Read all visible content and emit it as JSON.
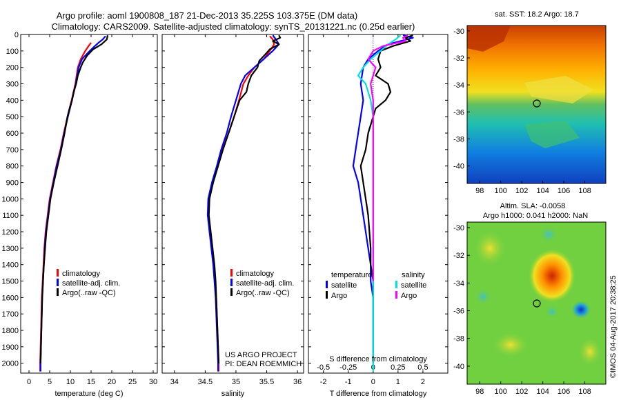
{
  "header": {
    "line1": "Argo profile: aoml 1900808_187 21-Dec-2013 35.225S 103.375E (DM data)",
    "line2": "Climatology: CARS2009. Satellite-adjusted climatology: synTS_20131221.nc (0.25d earlier)"
  },
  "credits": {
    "project": "US ARGO PROJECT",
    "pi": "PI: DEAN ROEMMICH",
    "stamp": "©IMOS 04-Aug-2017 20:38:25"
  },
  "chart_data": [
    {
      "type": "line",
      "xlabel": "temperature (deg C)",
      "xlim": [
        -2,
        31
      ],
      "xticks": [
        "0",
        "5",
        "10",
        "15",
        "20",
        "25",
        "30"
      ],
      "ylim": [
        2060,
        0
      ],
      "yticks": [
        "0",
        "100",
        "200",
        "300",
        "400",
        "500",
        "600",
        "700",
        "800",
        "900",
        "1000",
        "1100",
        "1200",
        "1300",
        "1400",
        "1500",
        "1600",
        "1700",
        "1800",
        "1900",
        "2000"
      ],
      "legend": [
        "climatology",
        "satellite-adj. clim.",
        "Argo(..raw -QC)"
      ],
      "series": [
        {
          "name": "climatology",
          "color": "#ff0000",
          "points": [
            [
              15,
              50
            ],
            [
              14.4,
              70
            ],
            [
              13.6,
              100
            ],
            [
              12.5,
              150
            ],
            [
              11.8,
              200
            ],
            [
              11.2,
              300
            ],
            [
              10.3,
              400
            ],
            [
              9.3,
              500
            ],
            [
              8.4,
              600
            ],
            [
              7.6,
              700
            ],
            [
              6.6,
              800
            ],
            [
              5.8,
              900
            ],
            [
              5.0,
              1000
            ],
            [
              4.5,
              1100
            ],
            [
              4.0,
              1200
            ],
            [
              3.7,
              1300
            ],
            [
              3.5,
              1400
            ],
            [
              3.3,
              1500
            ],
            [
              3.1,
              1600
            ],
            [
              3.0,
              1700
            ],
            [
              2.9,
              1800
            ],
            [
              2.8,
              1900
            ],
            [
              2.7,
              2000
            ],
            [
              2.7,
              2050
            ]
          ]
        },
        {
          "name": "satellite-adj. clim.",
          "color": "#0000ff",
          "points": [
            [
              18.5,
              10
            ],
            [
              17.8,
              30
            ],
            [
              16.8,
              50
            ],
            [
              15.5,
              80
            ],
            [
              14.3,
              110
            ],
            [
              12.8,
              150
            ],
            [
              12,
              200
            ],
            [
              11.3,
              300
            ],
            [
              10.4,
              400
            ],
            [
              9.4,
              500
            ],
            [
              8.5,
              600
            ],
            [
              7.7,
              700
            ],
            [
              6.7,
              800
            ],
            [
              5.9,
              900
            ],
            [
              5.1,
              1000
            ],
            [
              4.6,
              1100
            ],
            [
              4.1,
              1200
            ],
            [
              3.8,
              1300
            ],
            [
              3.6,
              1400
            ],
            [
              3.4,
              1500
            ],
            [
              3.2,
              1600
            ],
            [
              3.1,
              1700
            ],
            [
              3.0,
              1800
            ],
            [
              2.9,
              1900
            ],
            [
              2.8,
              2000
            ],
            [
              2.8,
              2050
            ]
          ]
        },
        {
          "name": "Argo(..raw -QC)",
          "color": "#000000",
          "points": [
            [
              19,
              5
            ],
            [
              18.8,
              30
            ],
            [
              17.5,
              60
            ],
            [
              15.5,
              90
            ],
            [
              14,
              130
            ],
            [
              13,
              170
            ],
            [
              12.5,
              200
            ],
            [
              11.8,
              250
            ],
            [
              11.4,
              300
            ],
            [
              10.8,
              350
            ],
            [
              10.4,
              400
            ],
            [
              9.8,
              450
            ],
            [
              9.3,
              500
            ],
            [
              8.6,
              600
            ],
            [
              7.8,
              700
            ],
            [
              6.9,
              800
            ],
            [
              6.0,
              900
            ],
            [
              5.2,
              1000
            ],
            [
              4.7,
              1100
            ],
            [
              4.2,
              1200
            ],
            [
              3.9,
              1300
            ],
            [
              3.6,
              1400
            ],
            [
              3.4,
              1500
            ],
            [
              3.2,
              1600
            ],
            [
              3.1,
              1700
            ],
            [
              3.0,
              1800
            ],
            [
              2.9,
              1900
            ],
            [
              2.8,
              2000
            ]
          ]
        }
      ]
    },
    {
      "type": "line",
      "xlabel": "salinity",
      "xlim": [
        33.8,
        36.1
      ],
      "xticks": [
        "34",
        "34.5",
        "35",
        "35.5",
        "36"
      ],
      "ylim": [
        2060,
        0
      ],
      "legend": [
        "climatology",
        "satellite-adj. clim.",
        "Argo(..raw -QC)"
      ],
      "series": [
        {
          "name": "climatology",
          "color": "#ff0000",
          "points": [
            [
              35.55,
              10
            ],
            [
              35.6,
              30
            ],
            [
              35.62,
              60
            ],
            [
              35.55,
              100
            ],
            [
              35.45,
              150
            ],
            [
              35.3,
              200
            ],
            [
              35.2,
              250
            ],
            [
              35.12,
              300
            ],
            [
              35.05,
              400
            ],
            [
              34.97,
              500
            ],
            [
              34.88,
              600
            ],
            [
              34.78,
              700
            ],
            [
              34.7,
              800
            ],
            [
              34.62,
              900
            ],
            [
              34.56,
              1000
            ],
            [
              34.55,
              1100
            ],
            [
              34.58,
              1200
            ],
            [
              34.61,
              1300
            ],
            [
              34.64,
              1400
            ],
            [
              34.66,
              1500
            ],
            [
              34.68,
              1600
            ],
            [
              34.69,
              1700
            ],
            [
              34.7,
              1800
            ],
            [
              34.71,
              1900
            ],
            [
              34.72,
              2000
            ],
            [
              34.72,
              2050
            ]
          ]
        },
        {
          "name": "satellite-adj. clim.",
          "color": "#0000ff",
          "points": [
            [
              35.6,
              5
            ],
            [
              35.65,
              30
            ],
            [
              35.7,
              60
            ],
            [
              35.6,
              100
            ],
            [
              35.45,
              150
            ],
            [
              35.3,
              200
            ],
            [
              35.15,
              250
            ],
            [
              35.08,
              300
            ],
            [
              35.0,
              400
            ],
            [
              34.92,
              500
            ],
            [
              34.85,
              600
            ],
            [
              34.76,
              700
            ],
            [
              34.69,
              800
            ],
            [
              34.61,
              900
            ],
            [
              34.55,
              1000
            ],
            [
              34.54,
              1100
            ],
            [
              34.57,
              1200
            ],
            [
              34.6,
              1300
            ],
            [
              34.63,
              1400
            ],
            [
              34.65,
              1500
            ],
            [
              34.67,
              1600
            ],
            [
              34.68,
              1700
            ],
            [
              34.69,
              1800
            ],
            [
              34.7,
              1900
            ],
            [
              34.71,
              2000
            ],
            [
              34.71,
              2050
            ]
          ]
        },
        {
          "name": "Argo(..raw -QC)",
          "color": "#000000",
          "points": [
            [
              35.7,
              5
            ],
            [
              35.72,
              20
            ],
            [
              35.6,
              40
            ],
            [
              35.7,
              60
            ],
            [
              35.55,
              90
            ],
            [
              35.48,
              120
            ],
            [
              35.38,
              160
            ],
            [
              35.35,
              200
            ],
            [
              35.25,
              250
            ],
            [
              35.2,
              300
            ],
            [
              35.17,
              350
            ],
            [
              35.06,
              400
            ],
            [
              34.97,
              500
            ],
            [
              34.88,
              600
            ],
            [
              34.79,
              700
            ],
            [
              34.71,
              800
            ],
            [
              34.63,
              900
            ],
            [
              34.57,
              1000
            ],
            [
              34.56,
              1100
            ],
            [
              34.59,
              1200
            ],
            [
              34.62,
              1300
            ],
            [
              34.65,
              1400
            ],
            [
              34.67,
              1500
            ],
            [
              34.68,
              1600
            ],
            [
              34.69,
              1700
            ],
            [
              34.7,
              1800
            ],
            [
              34.71,
              1900
            ],
            [
              34.72,
              2000
            ]
          ]
        }
      ]
    },
    {
      "type": "line",
      "xlabel": "T difference from climatology",
      "xlabel2": "S difference from climatology",
      "xlim": [
        -2.6,
        3.0
      ],
      "xticks": [
        "-2",
        "-1",
        "0",
        "1",
        "2"
      ],
      "xticks_top": [
        "-0.5",
        "-0.25",
        "0",
        "0.25",
        "0.5"
      ],
      "ylim": [
        2060,
        0
      ],
      "legend_group_t": "temperature",
      "legend_group_s": "salinity",
      "legend": [
        "satellite",
        "Argo",
        "satellite",
        "Argo"
      ],
      "series": [
        {
          "name": "satellite",
          "group": "temperature",
          "color": "#0000ff",
          "points": [
            [
              1.2,
              5
            ],
            [
              1.6,
              20
            ],
            [
              0.6,
              60
            ],
            [
              0.2,
              100
            ],
            [
              -0.2,
              150
            ],
            [
              -0.4,
              200
            ],
            [
              -0.5,
              300
            ],
            [
              -0.4,
              400
            ],
            [
              -0.5,
              500
            ],
            [
              -0.6,
              600
            ],
            [
              -0.7,
              700
            ],
            [
              -0.8,
              800
            ],
            [
              -0.6,
              900
            ],
            [
              -0.5,
              1000
            ],
            [
              -0.4,
              1100
            ],
            [
              -0.3,
              1200
            ],
            [
              -0.2,
              1300
            ],
            [
              -0.1,
              1400
            ],
            [
              -0.1,
              1500
            ],
            [
              0,
              1600
            ],
            [
              0,
              1700
            ],
            [
              0,
              1800
            ],
            [
              0,
              1900
            ],
            [
              0,
              2000
            ]
          ]
        },
        {
          "name": "Argo",
          "group": "temperature",
          "color": "#000000",
          "points": [
            [
              1.6,
              5
            ],
            [
              1.3,
              20
            ],
            [
              1.5,
              40
            ],
            [
              0.8,
              70
            ],
            [
              0.3,
              100
            ],
            [
              0.2,
              150
            ],
            [
              0.3,
              200
            ],
            [
              0.1,
              250
            ],
            [
              0.6,
              300
            ],
            [
              0.7,
              350
            ],
            [
              0.5,
              400
            ],
            [
              0.1,
              450
            ],
            [
              0,
              500
            ],
            [
              -0.2,
              600
            ],
            [
              -0.3,
              700
            ],
            [
              -0.5,
              800
            ],
            [
              -0.4,
              900
            ],
            [
              -0.3,
              1000
            ],
            [
              -0.2,
              1100
            ],
            [
              -0.15,
              1200
            ],
            [
              -0.1,
              1300
            ],
            [
              -0.1,
              1400
            ],
            [
              0,
              1500
            ],
            [
              0,
              1600
            ]
          ]
        },
        {
          "name": "satellite",
          "group": "salinity",
          "color": "#00e0e0",
          "points": [
            [
              1.1,
              5
            ],
            [
              0.9,
              30
            ],
            [
              0.6,
              60
            ],
            [
              0.3,
              100
            ],
            [
              -0.1,
              150
            ],
            [
              -0.4,
              200
            ],
            [
              -0.6,
              250
            ],
            [
              -0.3,
              300
            ],
            [
              -0.1,
              400
            ],
            [
              0,
              500
            ],
            [
              0,
              600
            ],
            [
              0,
              800
            ],
            [
              0,
              1000
            ],
            [
              0,
              1200
            ],
            [
              0,
              1500
            ],
            [
              0,
              1800
            ],
            [
              0,
              2050
            ]
          ]
        },
        {
          "name": "Argo",
          "group": "salinity",
          "color": "#ff00ff",
          "points": [
            [
              1.4,
              5
            ],
            [
              1.2,
              20
            ],
            [
              1.3,
              40
            ],
            [
              0.4,
              70
            ],
            [
              0.0,
              100
            ],
            [
              -0.2,
              150
            ],
            [
              0.1,
              200
            ],
            [
              0.0,
              250
            ],
            [
              -0.1,
              300
            ],
            [
              0.0,
              400
            ],
            [
              0,
              500
            ],
            [
              0,
              700
            ],
            [
              0,
              1000
            ],
            [
              0,
              1500
            ]
          ]
        }
      ]
    }
  ],
  "maps": [
    {
      "title": "sat. SST: 18.2 Argo: 18.7",
      "xticks": [
        "98",
        "100",
        "102",
        "104",
        "106",
        "108"
      ],
      "yticks": [
        "-30",
        "-32",
        "-34",
        "-36",
        "-38",
        "-40"
      ]
    },
    {
      "title1": "Altim. SLA: -0.0058",
      "title2": "Argo h1000: 0.041 h2000: NaN",
      "xticks": [
        "98",
        "100",
        "102",
        "104",
        "106",
        "108"
      ],
      "yticks": [
        "-30",
        "-32",
        "-34",
        "-36",
        "-38",
        "-40"
      ]
    }
  ]
}
